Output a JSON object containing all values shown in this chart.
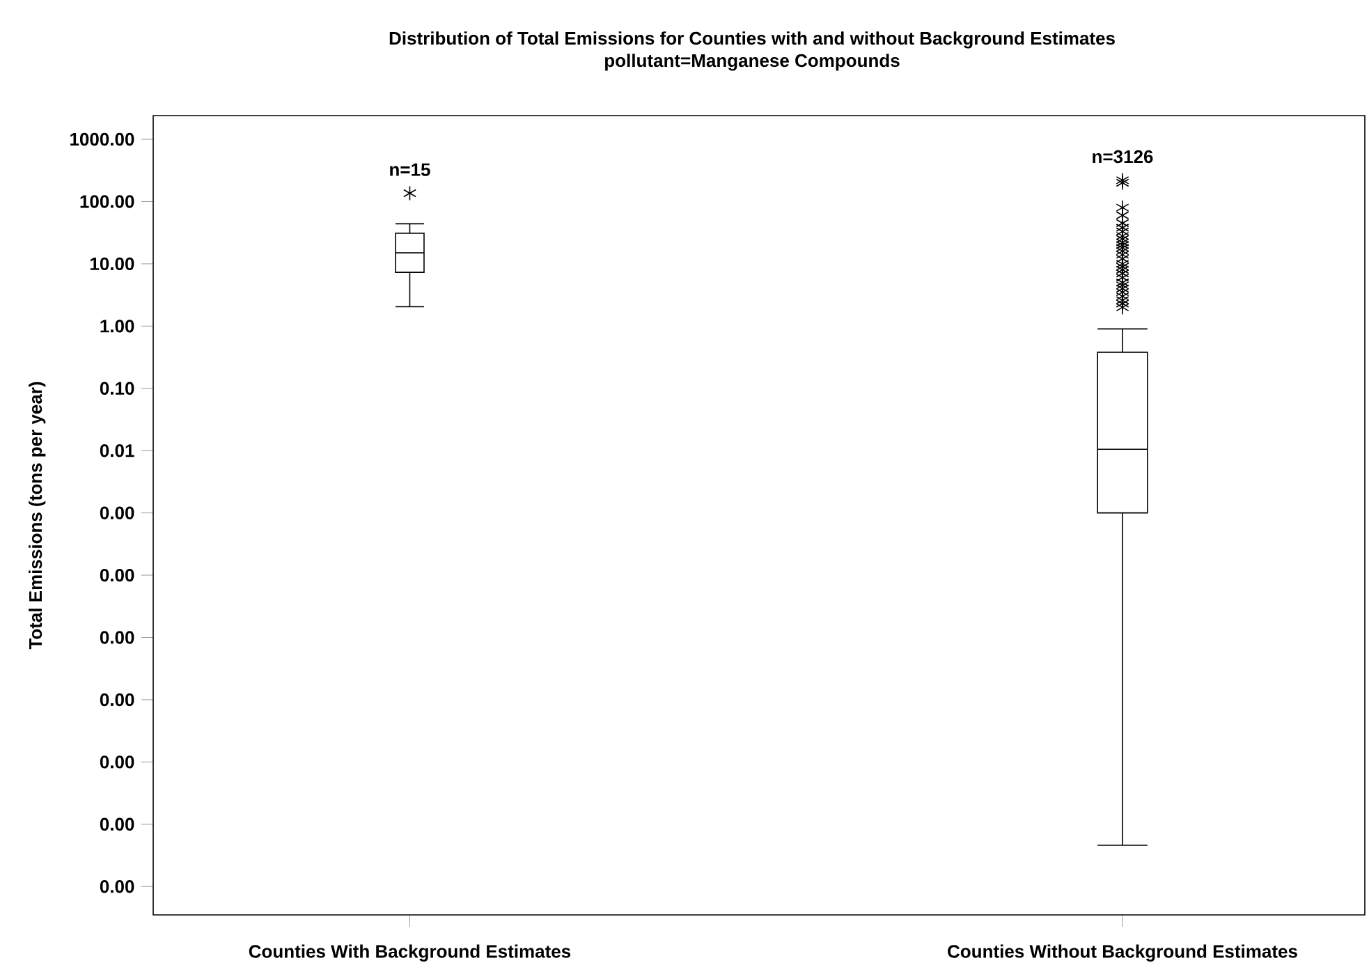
{
  "chart_data": {
    "type": "box",
    "title": "Distribution of Total Emissions for Counties with and without Background Estimates",
    "subtitle": "pollutant=Manganese Compounds",
    "ylabel": "Total Emissions (tons per year)",
    "categories": [
      "Counties With Background Estimates",
      "Counties Without Background Estimates"
    ],
    "boxes": [
      {
        "low": 2.05,
        "q1": 7.3,
        "median": 15,
        "q3": 31,
        "high": 44,
        "outliers": [
          136
        ]
      },
      {
        "low": 4.6e-09,
        "q1": 0.001,
        "median": 0.0105,
        "q3": 0.38,
        "high": 0.9,
        "outliers": [
          220,
          200,
          80,
          60,
          45,
          38,
          33,
          28,
          25,
          22,
          20,
          18,
          16,
          14,
          12,
          10,
          9,
          8,
          7,
          6,
          5,
          4.5,
          4,
          3.5,
          3,
          2.6,
          2.3,
          2
        ]
      }
    ],
    "log": "y",
    "ylim": [
      3.5e-10,
      2400
    ],
    "yticks": [
      {
        "value": 1000,
        "label": "1000.00"
      },
      {
        "value": 100,
        "label": "100.00"
      },
      {
        "value": 10,
        "label": "10.00"
      },
      {
        "value": 1,
        "label": "1.00"
      },
      {
        "value": 0.1,
        "label": "0.10"
      },
      {
        "value": 0.01,
        "label": "0.01"
      },
      {
        "value": 0.001,
        "label": "0.00"
      },
      {
        "value": 0.0001,
        "label": "0.00"
      },
      {
        "value": 1e-05,
        "label": "0.00"
      },
      {
        "value": 1e-06,
        "label": "0.00"
      },
      {
        "value": 1e-07,
        "label": "0.00"
      },
      {
        "value": 1e-08,
        "label": "0.00"
      },
      {
        "value": 1e-09,
        "label": "0.00"
      }
    ],
    "marker": "star",
    "annotations": [
      "n=15",
      "n=3126"
    ]
  }
}
